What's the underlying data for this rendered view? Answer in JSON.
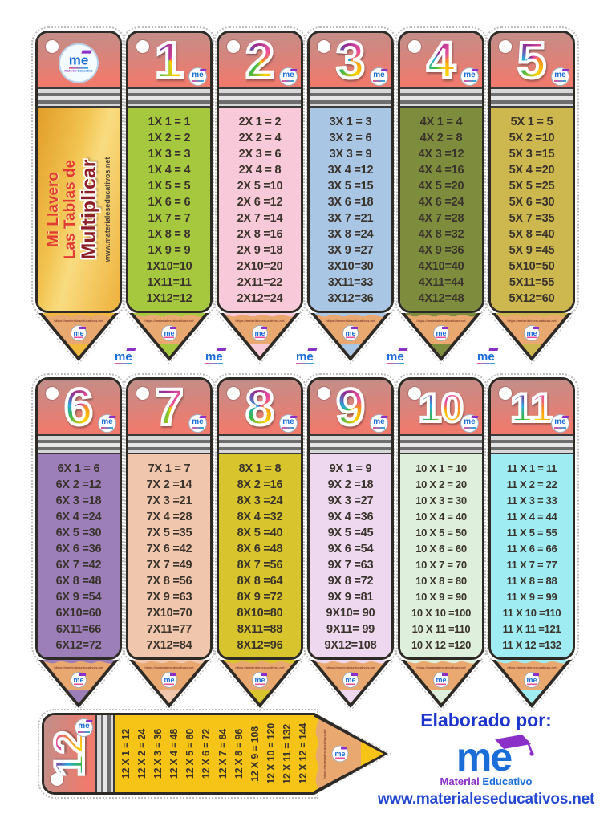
{
  "branding": {
    "logo_short": "me",
    "logo_material": "Material",
    "logo_educativo": "Educativo",
    "elaborado": "Elaborado por:",
    "site_url": "www.materialeseducativos.net",
    "tip_url": "https://materialeseducativos.net"
  },
  "colors": {
    "eraser_salmon": "#ee7b6e",
    "wood": "#eaa871",
    "outline": "#2e2a26",
    "logo_blue": "#1b6ed8",
    "logo_purple": "#8b2fc9",
    "title_red": "#e23b30",
    "title_maroon": "#8d1f27",
    "footer_blue": "#1d35cd"
  },
  "title_pencil": {
    "line1": "Mi Llavero",
    "line2": "Las Tablas de",
    "line3": "Multiplicar",
    "url": "www.materialeseducativos.net",
    "body_color": "#f0b83c"
  },
  "pencils": [
    {
      "number": "1",
      "body_color": "#a6c83e",
      "lines": [
        "1X 1 = 1",
        "1X 2 = 2",
        "1X 3 = 3",
        "1X 4 = 4",
        "1X 5 = 5",
        "1X 6 = 6",
        "1X 7 = 7",
        "1X 8 = 8",
        "1X 9 = 9",
        "1X10=10",
        "1X11=11",
        "1X12=12"
      ]
    },
    {
      "number": "2",
      "body_color": "#f7c9d9",
      "lines": [
        "2X 1 = 2",
        "2X 2 = 4",
        "2X 3 = 6",
        "2X 4 = 8",
        "2X 5 =10",
        "2X 6 =12",
        "2X 7 =14",
        "2X 8 =16",
        "2X 9 =18",
        "2X10=20",
        "2X11=22",
        "2X12=24"
      ]
    },
    {
      "number": "3",
      "body_color": "#a9c7e5",
      "lines": [
        "3X 1 = 3",
        "3X 2 = 6",
        "3X 3 = 9",
        "3X 4 =12",
        "3X 5 =15",
        "3X 6 =18",
        "3X 7 =21",
        "3X 8 =24",
        "3X 9 =27",
        "3X10=30",
        "3X11=33",
        "3X12=36"
      ]
    },
    {
      "number": "4",
      "body_color": "#7d8c3d",
      "lines": [
        "4X 1 = 4",
        "4X 2 = 8",
        "4X 3 =12",
        "4X 4 =16",
        "4X 5 =20",
        "4X 6 =24",
        "4X 7 =28",
        "4X 8 =32",
        "4X 9 =36",
        "4X10=40",
        "4X11=44",
        "4X12=48"
      ]
    },
    {
      "number": "5",
      "body_color": "#cdb850",
      "lines": [
        "5X 1 = 5",
        "5X 2 =10",
        "5X 3 =15",
        "5X 4 =20",
        "5X 5 =25",
        "5X 6 =30",
        "5X 7 =35",
        "5X 8 =40",
        "5X 9 =45",
        "5X10=50",
        "5X11=55",
        "5X12=60"
      ]
    },
    {
      "number": "6",
      "body_color": "#9c7eb9",
      "lines": [
        "6X 1 = 6",
        "6X 2 =12",
        "6X 3 =18",
        "6X 4 =24",
        "6X 5 =30",
        "6X 6 =36",
        "6X 7 =42",
        "6X 8 =48",
        "6X 9 =54",
        "6X10=60",
        "6X11=66",
        "6X12=72"
      ]
    },
    {
      "number": "7",
      "body_color": "#f0c6ad",
      "lines": [
        "7X 1 = 7",
        "7X 2 =14",
        "7X 3 =21",
        "7X 4 =28",
        "7X 5 =35",
        "7X 6 =42",
        "7X 7 =49",
        "7X 8 =56",
        "7X 9 =63",
        "7X10=70",
        "7X11=77",
        "7X12=84"
      ]
    },
    {
      "number": "8",
      "body_color": "#d8c52d",
      "lines": [
        "8X 1 = 8",
        "8X 2 =16",
        "8X 3 =24",
        "8X 4 =32",
        "8X 5 =40",
        "8X 6 =48",
        "8X 7 =56",
        "8X 8 =64",
        "8X 9 =72",
        "8X10=80",
        "8X11=88",
        "8X12=96"
      ]
    },
    {
      "number": "9",
      "body_color": "#eed8f0",
      "lines": [
        "9X 1 = 9",
        "9X 2 =18",
        "9X 3 =27",
        "9X 4 =36",
        "9X 5 =45",
        "9X 6 =54",
        "9X 7 =63",
        "9X 8 =72",
        "9X 9 =81",
        "9X10= 90",
        "9X11= 99",
        "9X12=108"
      ]
    },
    {
      "number": "10",
      "body_color": "#def0dc",
      "lines": [
        "10 X 1 = 10",
        "10 X 2 = 20",
        "10 X 3 = 30",
        "10 X 4 = 40",
        "10 X 5 = 50",
        "10 X 6 = 60",
        "10 X 7 = 70",
        "10 X 8 = 80",
        "10 X 9 = 90",
        "10 X 10 =100",
        "10 X 11 =110",
        "10 X 12 =120"
      ]
    },
    {
      "number": "11",
      "body_color": "#9fedf2",
      "lines": [
        "11 X 1 = 11",
        "11 X 2 = 22",
        "11 X 3 = 33",
        "11 X 4 = 44",
        "11 X 5 = 55",
        "11 X 6 = 66",
        "11 X 7 = 77",
        "11 X 8 = 88",
        "11 X 9 = 99",
        "11 X 10 =110",
        "11 X 11 =121",
        "11 X 12 =132"
      ]
    }
  ],
  "pencil_12": {
    "number": "12",
    "body_color": "#f6c417",
    "lines": [
      "12 X 1 = 12",
      "12 X 2 = 24",
      "12 X 3 = 36",
      "12 X 4 = 48",
      "12 X 5 = 60",
      "12 X 6 = 72",
      "12 X 7 = 84",
      "12 X 8 = 96",
      "12 X 9 = 108",
      "12 X 10 = 120",
      "12 X 11 = 132",
      "12 X 12 = 144"
    ]
  }
}
